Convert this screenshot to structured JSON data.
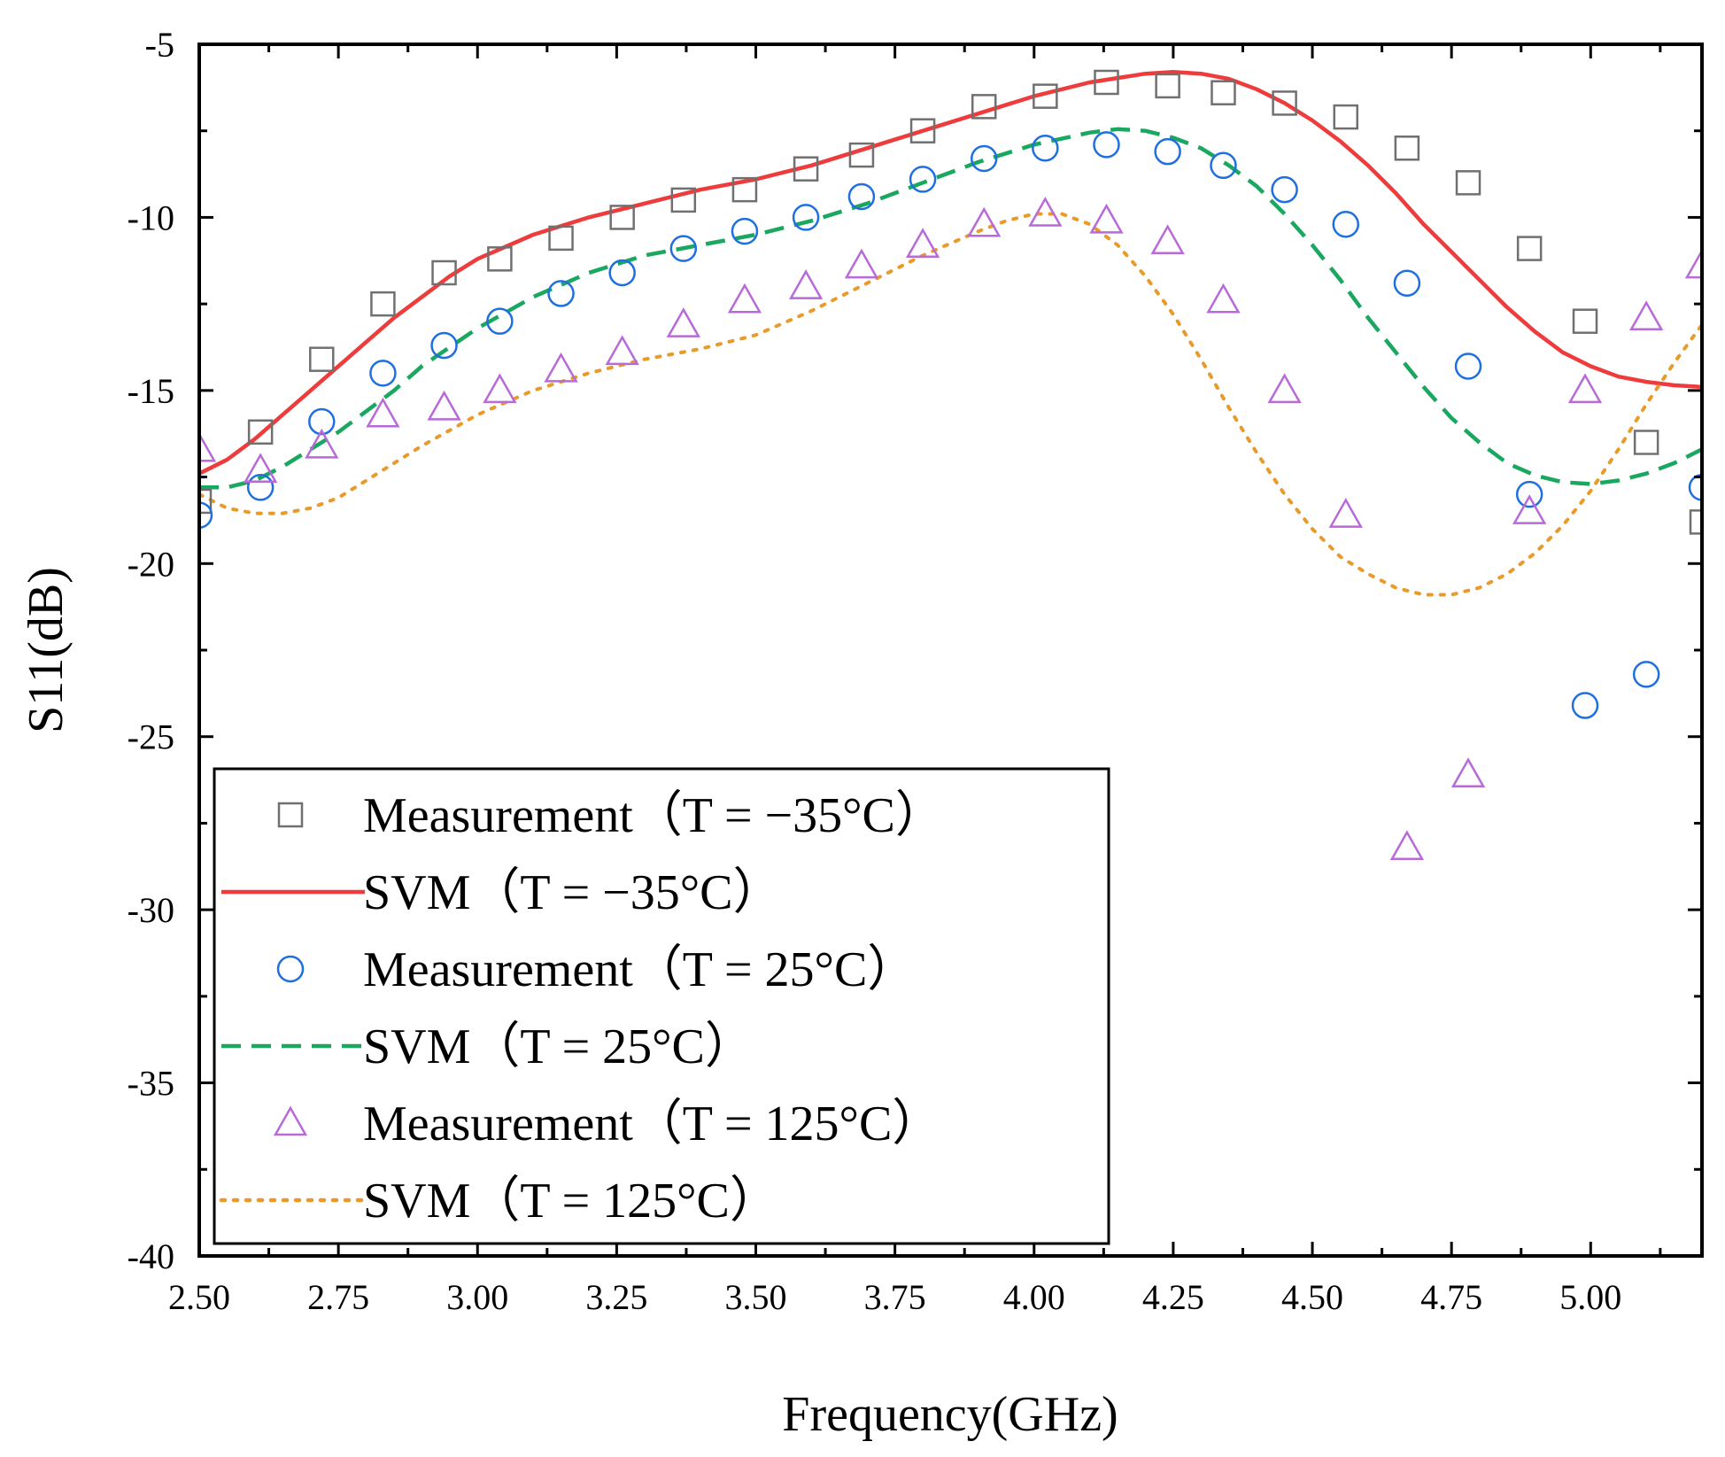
{
  "chart_data": {
    "type": "line",
    "title": "",
    "xlabel": "Frequency(GHz)",
    "ylabel": "S11(dB)",
    "xlim": [
      2.5,
      5.2
    ],
    "ylim": [
      -40,
      -5
    ],
    "xticks": [
      "2.50",
      "2.75",
      "3.00",
      "3.25",
      "3.50",
      "3.75",
      "4.00",
      "4.25",
      "4.50",
      "4.75",
      "5.00"
    ],
    "yticks": [
      "-5",
      "-10",
      "-15",
      "-20",
      "-25",
      "-30",
      "-35",
      "-40"
    ],
    "legend_position": "bottom-left",
    "series": [
      {
        "name": "Measurement（T = −35°C）",
        "kind": "marker",
        "marker": "square",
        "color": "#707070",
        "x": [
          2.5,
          2.61,
          2.72,
          2.83,
          2.94,
          3.04,
          3.15,
          3.26,
          3.37,
          3.48,
          3.59,
          3.69,
          3.8,
          3.91,
          4.02,
          4.13,
          4.24,
          4.34,
          4.45,
          4.56,
          4.67,
          4.78,
          4.89,
          4.99,
          5.1,
          5.2
        ],
        "y": [
          -18.2,
          -16.2,
          -14.1,
          -12.5,
          -11.6,
          -11.2,
          -10.6,
          -10.0,
          -9.5,
          -9.2,
          -8.6,
          -8.2,
          -7.5,
          -6.8,
          -6.5,
          -6.1,
          -6.2,
          -6.4,
          -6.7,
          -7.1,
          -8.0,
          -9.0,
          -10.9,
          -13.0,
          -16.5,
          -18.8
        ]
      },
      {
        "name": "SVM（T = −35°C）",
        "kind": "line",
        "style": "solid",
        "color": "#ee3b3b",
        "x": [
          2.5,
          2.55,
          2.6,
          2.65,
          2.7,
          2.75,
          2.8,
          2.85,
          2.9,
          2.95,
          3.0,
          3.1,
          3.2,
          3.3,
          3.4,
          3.5,
          3.6,
          3.7,
          3.8,
          3.9,
          4.0,
          4.1,
          4.2,
          4.25,
          4.3,
          4.35,
          4.4,
          4.45,
          4.5,
          4.55,
          4.6,
          4.65,
          4.7,
          4.75,
          4.8,
          4.85,
          4.9,
          4.95,
          5.0,
          5.05,
          5.1,
          5.15,
          5.2
        ],
        "y": [
          -17.4,
          -17.0,
          -16.4,
          -15.7,
          -15.0,
          -14.3,
          -13.6,
          -12.9,
          -12.3,
          -11.7,
          -11.2,
          -10.5,
          -10.0,
          -9.6,
          -9.2,
          -8.9,
          -8.5,
          -8.0,
          -7.5,
          -7.0,
          -6.5,
          -6.1,
          -5.85,
          -5.8,
          -5.85,
          -6.0,
          -6.3,
          -6.7,
          -7.2,
          -7.8,
          -8.5,
          -9.3,
          -10.2,
          -11.0,
          -11.8,
          -12.6,
          -13.3,
          -13.9,
          -14.3,
          -14.6,
          -14.75,
          -14.85,
          -14.9
        ]
      },
      {
        "name": "Measurement（T = 25°C）",
        "kind": "marker",
        "marker": "circle",
        "color": "#1f6fe0",
        "x": [
          2.5,
          2.61,
          2.72,
          2.83,
          2.94,
          3.04,
          3.15,
          3.26,
          3.37,
          3.48,
          3.59,
          3.69,
          3.8,
          3.91,
          4.02,
          4.13,
          4.24,
          4.34,
          4.45,
          4.56,
          4.67,
          4.78,
          4.89,
          4.99,
          5.1,
          5.2
        ],
        "y": [
          -18.6,
          -17.8,
          -15.9,
          -14.5,
          -13.7,
          -13.0,
          -12.2,
          -11.6,
          -10.9,
          -10.4,
          -10.0,
          -9.4,
          -8.9,
          -8.3,
          -8.0,
          -7.9,
          -8.1,
          -8.5,
          -9.2,
          -10.2,
          -11.9,
          -14.3,
          -18.0,
          -24.1,
          -23.2,
          -17.8
        ]
      },
      {
        "name": "SVM（T = 25°C）",
        "kind": "line",
        "style": "dashed",
        "color": "#1aa860",
        "x": [
          2.5,
          2.55,
          2.6,
          2.65,
          2.7,
          2.75,
          2.8,
          2.85,
          2.9,
          3.0,
          3.1,
          3.2,
          3.3,
          3.4,
          3.5,
          3.6,
          3.7,
          3.8,
          3.9,
          4.0,
          4.1,
          4.15,
          4.2,
          4.25,
          4.3,
          4.35,
          4.4,
          4.45,
          4.5,
          4.55,
          4.6,
          4.65,
          4.7,
          4.75,
          4.8,
          4.85,
          4.9,
          4.95,
          5.0,
          5.05,
          5.1,
          5.15,
          5.2
        ],
        "y": [
          -17.8,
          -17.8,
          -17.6,
          -17.2,
          -16.7,
          -16.2,
          -15.6,
          -15.0,
          -14.3,
          -13.2,
          -12.3,
          -11.6,
          -11.1,
          -10.8,
          -10.5,
          -10.1,
          -9.6,
          -9.0,
          -8.4,
          -7.9,
          -7.55,
          -7.45,
          -7.5,
          -7.7,
          -8.0,
          -8.5,
          -9.1,
          -9.9,
          -10.8,
          -11.8,
          -12.9,
          -13.9,
          -14.9,
          -15.8,
          -16.5,
          -17.1,
          -17.45,
          -17.65,
          -17.7,
          -17.6,
          -17.4,
          -17.1,
          -16.7
        ]
      },
      {
        "name": "Measurement（T = 125°C）",
        "kind": "marker",
        "marker": "triangle",
        "color": "#b86ad8",
        "x": [
          2.5,
          2.61,
          2.72,
          2.83,
          2.94,
          3.04,
          3.15,
          3.26,
          3.37,
          3.48,
          3.59,
          3.69,
          3.8,
          3.91,
          4.02,
          4.13,
          4.24,
          4.34,
          4.45,
          4.56,
          4.67,
          4.78,
          4.89,
          4.99,
          5.1,
          5.2
        ],
        "y": [
          -16.7,
          -17.3,
          -16.6,
          -15.7,
          -15.5,
          -15.0,
          -14.4,
          -13.9,
          -13.1,
          -12.4,
          -12.0,
          -11.4,
          -10.8,
          -10.2,
          -9.9,
          -10.1,
          -10.7,
          -12.4,
          -15.0,
          -18.6,
          -28.2,
          -26.1,
          -18.5,
          -15.0,
          -12.9,
          -11.4
        ]
      },
      {
        "name": "SVM（T = 125°C）",
        "kind": "line",
        "style": "dotted",
        "color": "#e89a2a",
        "x": [
          2.5,
          2.55,
          2.6,
          2.65,
          2.7,
          2.75,
          2.8,
          2.85,
          2.9,
          3.0,
          3.1,
          3.2,
          3.3,
          3.4,
          3.5,
          3.6,
          3.7,
          3.8,
          3.9,
          3.95,
          4.0,
          4.05,
          4.1,
          4.15,
          4.2,
          4.25,
          4.3,
          4.35,
          4.4,
          4.45,
          4.5,
          4.55,
          4.6,
          4.65,
          4.7,
          4.75,
          4.8,
          4.85,
          4.9,
          4.95,
          5.0,
          5.05,
          5.1,
          5.15,
          5.2
        ],
        "y": [
          -18.0,
          -18.4,
          -18.55,
          -18.55,
          -18.4,
          -18.1,
          -17.6,
          -17.1,
          -16.6,
          -15.7,
          -15.0,
          -14.5,
          -14.1,
          -13.8,
          -13.4,
          -12.7,
          -11.9,
          -11.1,
          -10.4,
          -10.1,
          -9.9,
          -9.9,
          -10.2,
          -10.8,
          -11.7,
          -12.8,
          -14.1,
          -15.5,
          -16.8,
          -18.0,
          -19.0,
          -19.8,
          -20.3,
          -20.7,
          -20.9,
          -20.9,
          -20.7,
          -20.3,
          -19.7,
          -18.9,
          -17.9,
          -16.7,
          -15.4,
          -14.2,
          -13.1
        ]
      }
    ]
  }
}
